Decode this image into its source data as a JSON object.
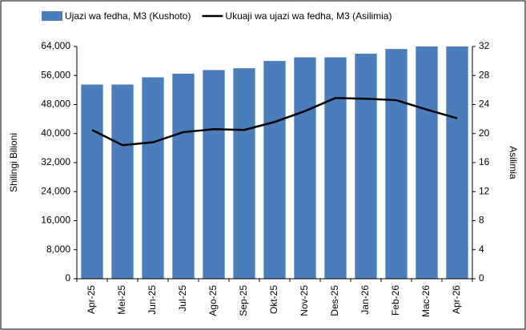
{
  "chart_data": {
    "type": "bar-line",
    "categories": [
      "Apr-25",
      "Mei-25",
      "Jun-25",
      "Jul-25",
      "Ago-25",
      "Sep-25",
      "Okt-25",
      "Nov-25",
      "Des-25",
      "Jan-26",
      "Feb-26",
      "Mac-26",
      "Apr-26"
    ],
    "series": [
      {
        "name": "Ujazi wa fedha, M3 (Kushoto)",
        "type": "bar",
        "color": "#4a7ebb",
        "values": [
          53500,
          53500,
          55500,
          56500,
          57500,
          58000,
          60000,
          61000,
          61000,
          62000,
          63300,
          64000,
          64000
        ]
      },
      {
        "name": "Ukuaji wa ujazi wa fedha, M3 (Asilimia)",
        "type": "line",
        "color": "#000000",
        "axis": "y2",
        "values": [
          20.5,
          18.4,
          18.8,
          20.2,
          20.6,
          20.5,
          21.6,
          23.1,
          24.9,
          24.8,
          24.6,
          23.3,
          22.1
        ]
      }
    ],
    "y_label": "Shilingi Bilioni",
    "y2_label": "Asilimia",
    "ylim": [
      0,
      64000
    ],
    "yticks": [
      0,
      {
        "value": 8000,
        "label": "8,000"
      },
      {
        "value": 16000,
        "label": "16,000"
      },
      {
        "value": 24000,
        "label": "24,000"
      },
      {
        "value": 32000,
        "label": "32,000"
      },
      {
        "value": 40000,
        "label": "40,000"
      },
      {
        "value": 48000,
        "label": "48,000"
      },
      {
        "value": 56000,
        "label": "56,000"
      },
      {
        "value": 64000,
        "label": "64,000"
      }
    ],
    "y2lim": [
      0,
      32
    ],
    "y2ticks": [
      0,
      4,
      8,
      12,
      16,
      20,
      24,
      28,
      32
    ],
    "legend": "top"
  }
}
